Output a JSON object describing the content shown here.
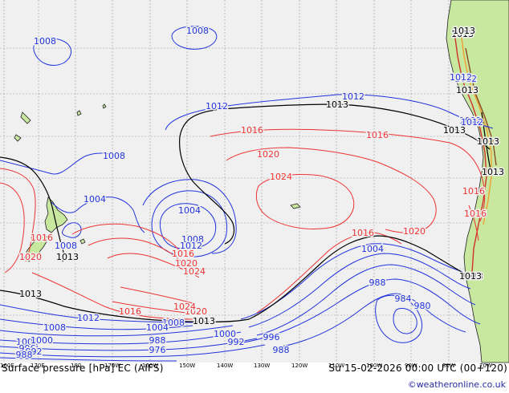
{
  "footer": {
    "title": "Surface pressure [hPa] EC (AIFS)",
    "valid_time": "Su 15-02-2026 00:00 UTC (00+120)",
    "credit": "©weatheronline.co.uk"
  },
  "longitude_ticks": [
    "160E",
    "170E",
    "180",
    "170W",
    "160W",
    "150W",
    "140W",
    "130W",
    "120W",
    "110W",
    "100W",
    "90W",
    "80W",
    "70W"
  ],
  "colors": {
    "ocean": "#f0f0f0",
    "land": "#c8e8a0",
    "coast": "#202020",
    "grid": "#9a9a9a",
    "low_isobar": "#2233dd",
    "high_isobar": "#ee3333",
    "standard_isobar": "#000000",
    "credit": "#2a2aa0"
  },
  "isobar_labels": [
    {
      "text": "1008",
      "color": "blue"
    },
    {
      "text": "1008",
      "color": "blue"
    },
    {
      "text": "1012",
      "color": "blue"
    },
    {
      "text": "1012",
      "color": "blue"
    },
    {
      "text": "1013",
      "color": "black"
    },
    {
      "text": "1013",
      "color": "black"
    },
    {
      "text": "1013",
      "color": "black"
    },
    {
      "text": "1013",
      "color": "black"
    },
    {
      "text": "1012",
      "color": "blue"
    },
    {
      "text": "1012",
      "color": "blue"
    },
    {
      "text": "1013",
      "color": "black"
    },
    {
      "text": "1013",
      "color": "black"
    },
    {
      "text": "1016",
      "color": "red"
    },
    {
      "text": "1016",
      "color": "red"
    },
    {
      "text": "1020",
      "color": "red"
    },
    {
      "text": "1024",
      "color": "red"
    },
    {
      "text": "1008",
      "color": "blue"
    },
    {
      "text": "1004",
      "color": "blue"
    },
    {
      "text": "1004",
      "color": "blue"
    },
    {
      "text": "1008",
      "color": "blue"
    },
    {
      "text": "1012",
      "color": "blue"
    },
    {
      "text": "1016",
      "color": "red"
    },
    {
      "text": "1020",
      "color": "red"
    },
    {
      "text": "1024",
      "color": "red"
    },
    {
      "text": "1016",
      "color": "red"
    },
    {
      "text": "1020",
      "color": "red"
    },
    {
      "text": "1016",
      "color": "red"
    },
    {
      "text": "1008",
      "color": "blue"
    },
    {
      "text": "1020",
      "color": "red"
    },
    {
      "text": "1013",
      "color": "black"
    },
    {
      "text": "1013",
      "color": "black"
    },
    {
      "text": "1004",
      "color": "blue"
    },
    {
      "text": "988",
      "color": "blue"
    },
    {
      "text": "984",
      "color": "blue"
    },
    {
      "text": "980",
      "color": "blue"
    },
    {
      "text": "1013",
      "color": "black"
    },
    {
      "text": "1012",
      "color": "blue"
    },
    {
      "text": "1016",
      "color": "red"
    },
    {
      "text": "1020",
      "color": "red"
    },
    {
      "text": "1024",
      "color": "red"
    },
    {
      "text": "1008",
      "color": "blue"
    },
    {
      "text": "1013",
      "color": "black"
    },
    {
      "text": "1008",
      "color": "blue"
    },
    {
      "text": "1004",
      "color": "blue"
    },
    {
      "text": "1000",
      "color": "blue"
    },
    {
      "text": "996",
      "color": "blue"
    },
    {
      "text": "992",
      "color": "blue"
    },
    {
      "text": "988",
      "color": "blue"
    },
    {
      "text": "988",
      "color": "blue"
    },
    {
      "text": "984",
      "color": "blue"
    },
    {
      "text": "976",
      "color": "blue"
    },
    {
      "text": "1008",
      "color": "blue"
    },
    {
      "text": "1000",
      "color": "blue"
    },
    {
      "text": "996",
      "color": "blue"
    },
    {
      "text": "992",
      "color": "blue"
    },
    {
      "text": "988",
      "color": "blue"
    },
    {
      "text": "1016",
      "color": "red"
    },
    {
      "text": "1012",
      "color": "blue"
    },
    {
      "text": "1013",
      "color": "black"
    },
    {
      "text": "1012",
      "color": "blue"
    },
    {
      "text": "1013",
      "color": "black"
    },
    {
      "text": "1016",
      "color": "red"
    }
  ]
}
